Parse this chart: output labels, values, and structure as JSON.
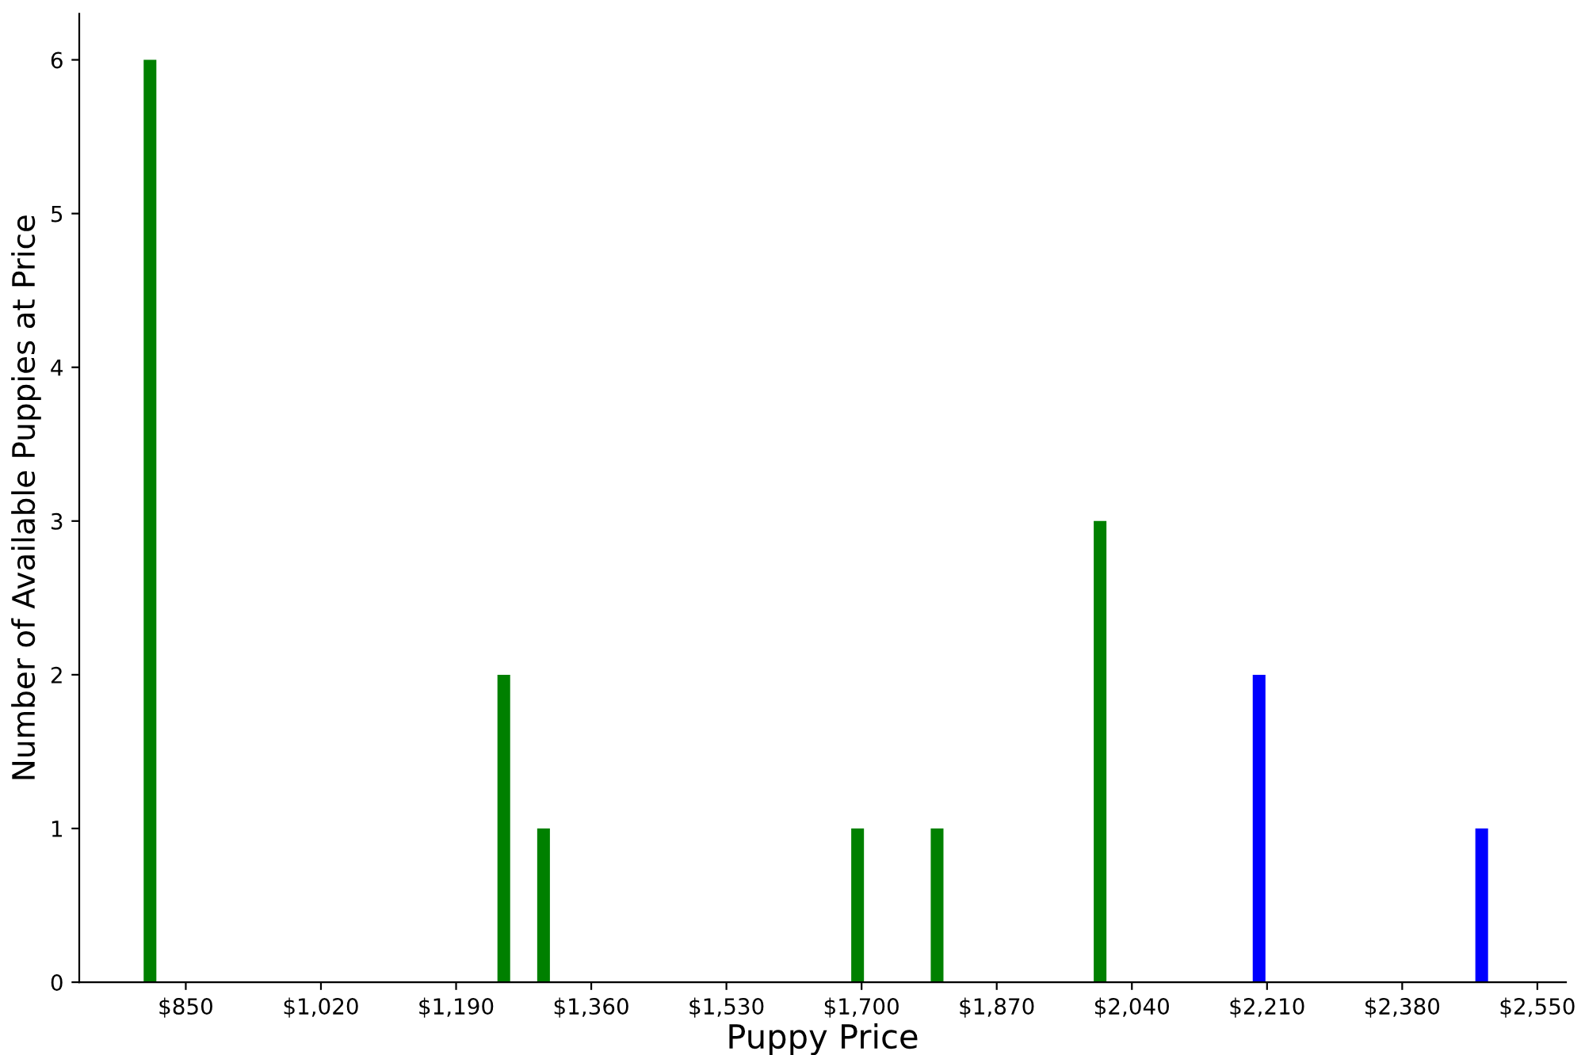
{
  "chart_data": {
    "type": "bar",
    "xlabel": "Puppy Price",
    "ylabel": "Number of Available Puppies at Price",
    "x": [
      805,
      1250,
      1300,
      1695,
      1795,
      2000,
      2200,
      2480
    ],
    "values": [
      6,
      2,
      1,
      1,
      1,
      3,
      2,
      1
    ],
    "colors": [
      "#008000",
      "#008000",
      "#008000",
      "#008000",
      "#008000",
      "#008000",
      "#0000ff",
      "#0000ff"
    ],
    "xlim": [
      716,
      2586
    ],
    "ylim": [
      0,
      6.3
    ],
    "xticks": [
      {
        "value": 850,
        "label": "$850"
      },
      {
        "value": 1020,
        "label": "$1,020"
      },
      {
        "value": 1190,
        "label": "$1,190"
      },
      {
        "value": 1360,
        "label": "$1,360"
      },
      {
        "value": 1530,
        "label": "$1,530"
      },
      {
        "value": 1700,
        "label": "$1,700"
      },
      {
        "value": 1870,
        "label": "$1,870"
      },
      {
        "value": 2040,
        "label": "$2,040"
      },
      {
        "value": 2210,
        "label": "$2,210"
      },
      {
        "value": 2380,
        "label": "$2,380"
      },
      {
        "value": 2550,
        "label": "$2,550"
      }
    ],
    "yticks": [
      0,
      1,
      2,
      3,
      4,
      5,
      6
    ],
    "grid": false,
    "legend": false
  }
}
